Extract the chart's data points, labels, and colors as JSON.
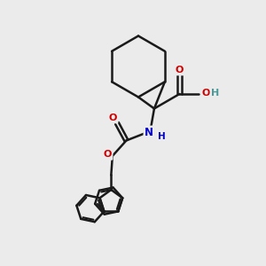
{
  "bg_color": "#ebebeb",
  "bond_color": "#1a1a1a",
  "bond_width": 1.8,
  "O_color": "#cc0000",
  "N_color": "#0000cc",
  "H_color": "#4a9a9a",
  "fig_size": [
    3.0,
    3.0
  ],
  "dpi": 100,
  "xlim": [
    0,
    10
  ],
  "ylim": [
    0,
    10
  ]
}
